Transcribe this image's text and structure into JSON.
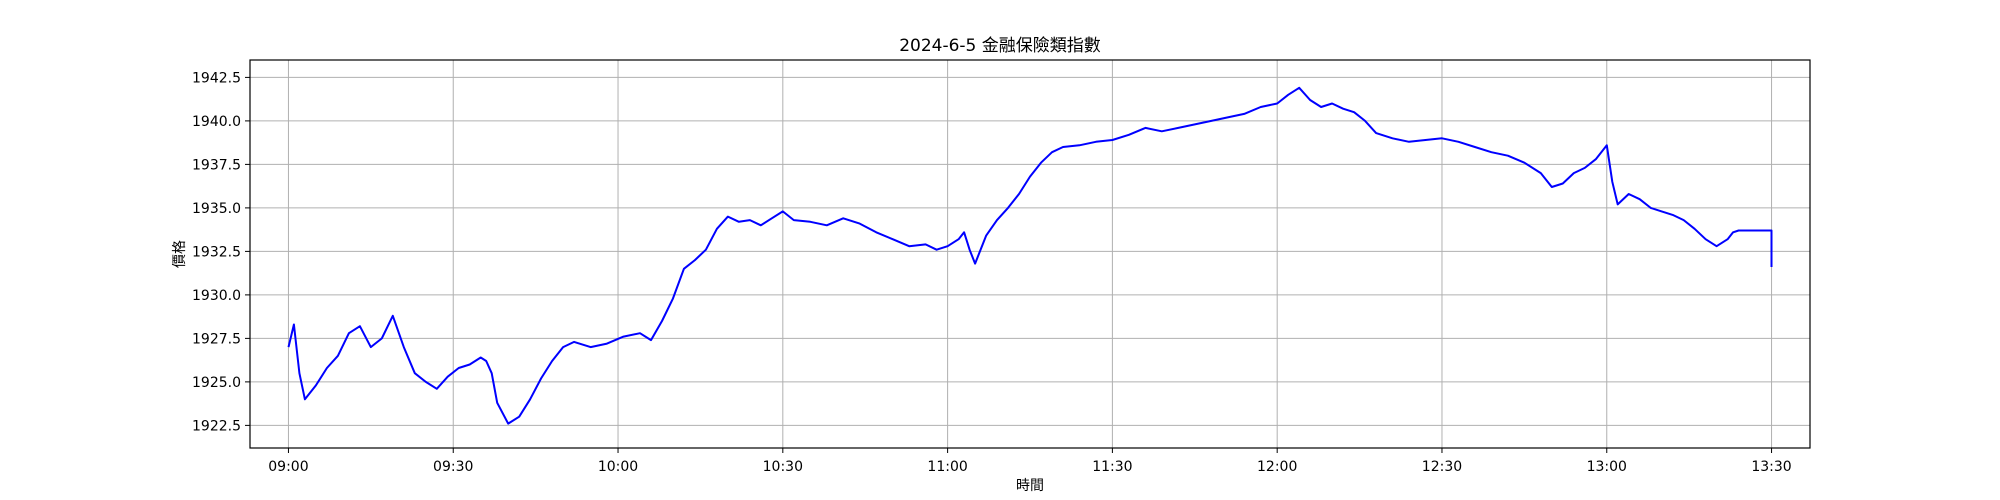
{
  "chart_data": {
    "type": "line",
    "title": "2024-6-5 金融保險類指數",
    "xlabel": "時間",
    "ylabel": "價格",
    "x_ticks": [
      "09:00",
      "09:30",
      "10:00",
      "10:30",
      "11:00",
      "11:30",
      "12:00",
      "12:30",
      "13:00",
      "13:30"
    ],
    "y_ticks": [
      "1922.5",
      "1925.0",
      "1927.5",
      "1930.0",
      "1932.5",
      "1935.0",
      "1937.5",
      "1940.0",
      "1942.5"
    ],
    "xlim": [
      "08:53",
      "13:37"
    ],
    "ylim": [
      1921.2,
      1943.5
    ],
    "grid": true,
    "series": [
      {
        "color": "#0000ff",
        "x": [
          "09:00",
          "09:01",
          "09:02",
          "09:03",
          "09:05",
          "09:07",
          "09:09",
          "09:11",
          "09:13",
          "09:15",
          "09:17",
          "09:19",
          "09:21",
          "09:23",
          "09:25",
          "09:27",
          "09:29",
          "09:31",
          "09:33",
          "09:35",
          "09:36",
          "09:37",
          "09:38",
          "09:40",
          "09:42",
          "09:44",
          "09:46",
          "09:48",
          "09:50",
          "09:52",
          "09:55",
          "09:58",
          "10:01",
          "10:04",
          "10:06",
          "10:08",
          "10:10",
          "10:12",
          "10:14",
          "10:16",
          "10:18",
          "10:20",
          "10:22",
          "10:24",
          "10:26",
          "10:28",
          "10:30",
          "10:32",
          "10:35",
          "10:38",
          "10:41",
          "10:44",
          "10:47",
          "10:50",
          "10:53",
          "10:56",
          "10:58",
          "11:00",
          "11:02",
          "11:03",
          "11:04",
          "11:05",
          "11:07",
          "11:09",
          "11:11",
          "11:13",
          "11:15",
          "11:17",
          "11:19",
          "11:21",
          "11:24",
          "11:27",
          "11:30",
          "11:33",
          "11:36",
          "11:39",
          "11:42",
          "11:45",
          "11:48",
          "11:51",
          "11:54",
          "11:57",
          "12:00",
          "12:02",
          "12:04",
          "12:06",
          "12:08",
          "12:10",
          "12:12",
          "12:14",
          "12:16",
          "12:18",
          "12:21",
          "12:24",
          "12:27",
          "12:30",
          "12:33",
          "12:36",
          "12:39",
          "12:42",
          "12:45",
          "12:48",
          "12:50",
          "12:52",
          "12:54",
          "12:56",
          "12:58",
          "13:00",
          "13:01",
          "13:02",
          "13:04",
          "13:06",
          "13:08",
          "13:10",
          "13:12",
          "13:14",
          "13:16",
          "13:18",
          "13:20",
          "13:22",
          "13:23",
          "13:24",
          "13:25",
          "13:30",
          "13:30"
        ],
        "values": [
          1927.0,
          1928.3,
          1925.5,
          1924.0,
          1924.8,
          1925.8,
          1926.5,
          1927.8,
          1928.2,
          1927.0,
          1927.5,
          1928.8,
          1927.0,
          1925.5,
          1925.0,
          1924.6,
          1925.3,
          1925.8,
          1926.0,
          1926.4,
          1926.2,
          1925.5,
          1923.8,
          1922.6,
          1923.0,
          1924.0,
          1925.2,
          1926.2,
          1927.0,
          1927.3,
          1927.0,
          1927.2,
          1927.6,
          1927.8,
          1927.4,
          1928.5,
          1929.8,
          1931.5,
          1932.0,
          1932.6,
          1933.8,
          1934.5,
          1934.2,
          1934.3,
          1934.0,
          1934.4,
          1934.8,
          1934.3,
          1934.2,
          1934.0,
          1934.4,
          1934.1,
          1933.6,
          1933.2,
          1932.8,
          1932.9,
          1932.6,
          1932.8,
          1933.2,
          1933.6,
          1932.6,
          1931.8,
          1933.4,
          1934.3,
          1935.0,
          1935.8,
          1936.8,
          1937.6,
          1938.2,
          1938.5,
          1938.6,
          1938.8,
          1938.9,
          1939.2,
          1939.6,
          1939.4,
          1939.6,
          1939.8,
          1940.0,
          1940.2,
          1940.4,
          1940.8,
          1941.0,
          1941.5,
          1941.9,
          1941.2,
          1940.8,
          1941.0,
          1940.7,
          1940.5,
          1940.0,
          1939.3,
          1939.0,
          1938.8,
          1938.9,
          1939.0,
          1938.8,
          1938.5,
          1938.2,
          1938.0,
          1937.6,
          1937.0,
          1936.2,
          1936.4,
          1937.0,
          1937.3,
          1937.8,
          1938.6,
          1936.5,
          1935.2,
          1935.8,
          1935.5,
          1935.0,
          1934.8,
          1934.6,
          1934.3,
          1933.8,
          1933.2,
          1932.8,
          1933.2,
          1933.6,
          1933.7,
          1933.7,
          1933.7,
          1931.6
        ]
      }
    ]
  }
}
